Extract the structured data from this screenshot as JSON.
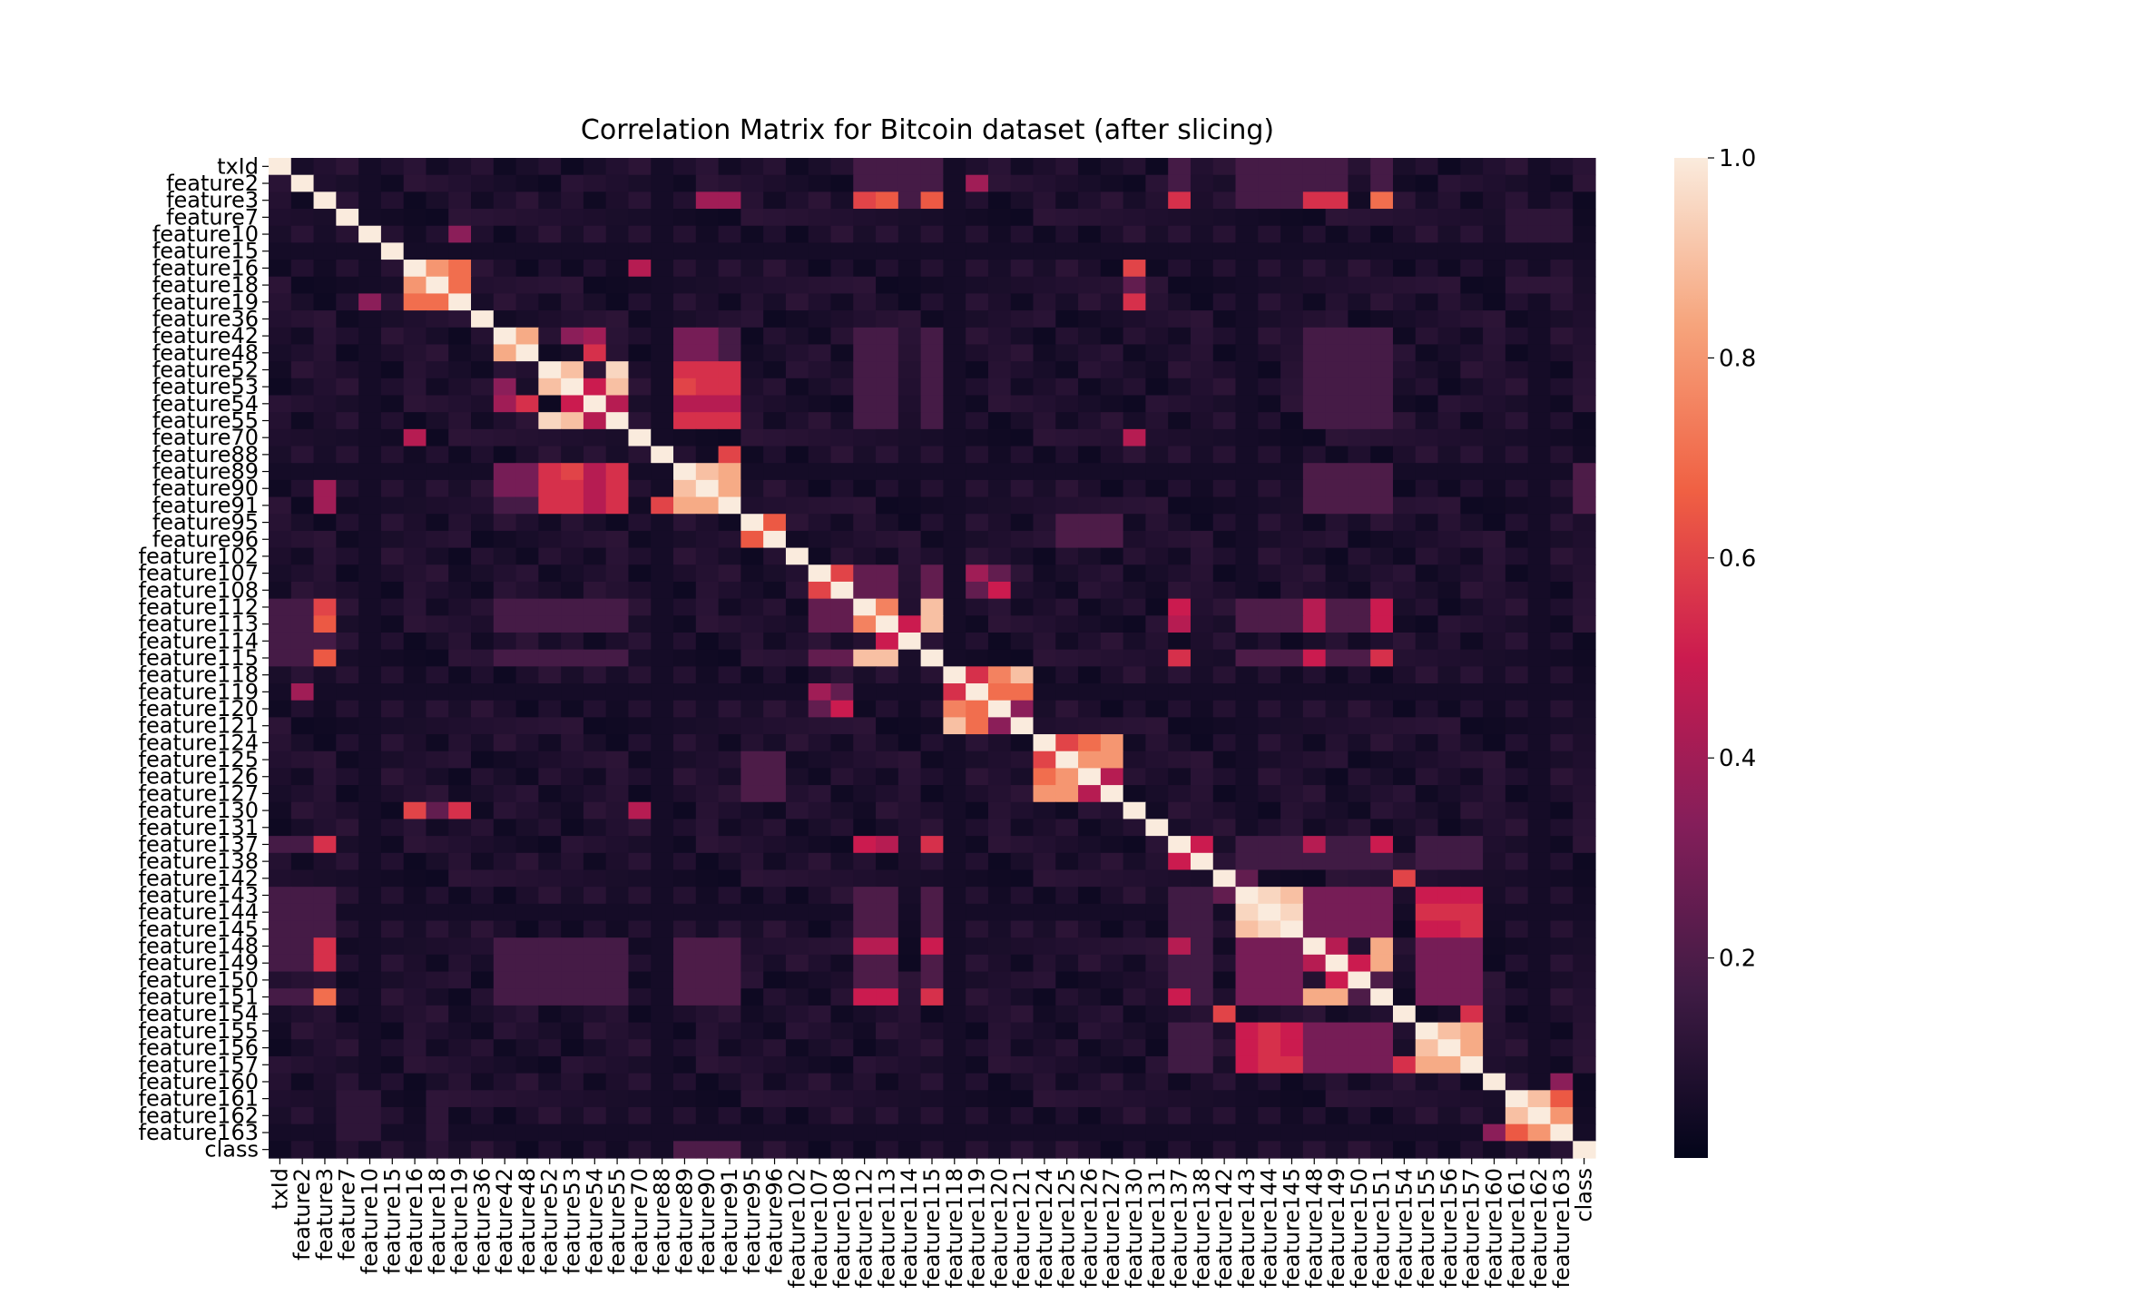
{
  "chart_data": {
    "type": "heatmap",
    "title": "Correlation Matrix for Bitcoin dataset (after slicing)",
    "labels": [
      "txId",
      "feature2",
      "feature3",
      "feature7",
      "feature10",
      "feature15",
      "feature16",
      "feature18",
      "feature19",
      "feature36",
      "feature42",
      "feature48",
      "feature52",
      "feature53",
      "feature54",
      "feature55",
      "feature70",
      "feature88",
      "feature89",
      "feature90",
      "feature91",
      "feature95",
      "feature96",
      "feature102",
      "feature107",
      "feature108",
      "feature112",
      "feature113",
      "feature114",
      "feature115",
      "feature118",
      "feature119",
      "feature120",
      "feature121",
      "feature124",
      "feature125",
      "feature126",
      "feature127",
      "feature130",
      "feature131",
      "feature137",
      "feature138",
      "feature142",
      "feature143",
      "feature144",
      "feature145",
      "feature148",
      "feature149",
      "feature150",
      "feature151",
      "feature154",
      "feature155",
      "feature156",
      "feature157",
      "feature160",
      "feature161",
      "feature162",
      "feature163",
      "class"
    ],
    "colorbar": {
      "range": [
        0.0,
        1.0
      ],
      "ticks": [
        0.2,
        0.4,
        0.6,
        0.8,
        1.0
      ],
      "tick_labels": [
        "0.2",
        "0.4",
        "0.6",
        "0.8",
        "1.0"
      ],
      "colormap": "rocket",
      "colors": [
        "#03051a",
        "#3f1b44",
        "#841e5a",
        "#cb1b4f",
        "#f06043",
        "#f6a47c",
        "#faebdd"
      ]
    },
    "background_value": 0.03,
    "high_correlations": [
      [
        "feature16",
        "feature18",
        0.8
      ],
      [
        "feature16",
        "feature19",
        0.7
      ],
      [
        "feature18",
        "feature19",
        0.7
      ],
      [
        "feature42",
        "feature48",
        0.85
      ],
      [
        "feature48",
        "feature54",
        0.55
      ],
      [
        "feature42",
        "feature53",
        0.35
      ],
      [
        "feature42",
        "feature54",
        0.4
      ],
      [
        "feature52",
        "feature53",
        0.9
      ],
      [
        "feature52",
        "feature55",
        0.95
      ],
      [
        "feature53",
        "feature55",
        0.9
      ],
      [
        "feature53",
        "feature54",
        0.5
      ],
      [
        "feature54",
        "feature55",
        0.45
      ],
      [
        "feature89",
        "feature90",
        0.9
      ],
      [
        "feature89",
        "feature91",
        0.85
      ],
      [
        "feature90",
        "feature91",
        0.85
      ],
      [
        "feature52",
        "feature89",
        0.55
      ],
      [
        "feature52",
        "feature90",
        0.55
      ],
      [
        "feature52",
        "feature91",
        0.55
      ],
      [
        "feature53",
        "feature89",
        0.6
      ],
      [
        "feature53",
        "feature90",
        0.55
      ],
      [
        "feature53",
        "feature91",
        0.55
      ],
      [
        "feature55",
        "feature89",
        0.55
      ],
      [
        "feature55",
        "feature90",
        0.55
      ],
      [
        "feature55",
        "feature91",
        0.55
      ],
      [
        "feature54",
        "feature89",
        0.45
      ],
      [
        "feature54",
        "feature90",
        0.45
      ],
      [
        "feature54",
        "feature91",
        0.45
      ],
      [
        "feature42",
        "feature89",
        0.3
      ],
      [
        "feature48",
        "feature89",
        0.3
      ],
      [
        "feature42",
        "feature90",
        0.3
      ],
      [
        "feature48",
        "feature90",
        0.3
      ],
      [
        "feature88",
        "feature91",
        0.6
      ],
      [
        "feature70",
        "feature16",
        0.45
      ],
      [
        "feature70",
        "feature130",
        0.45
      ],
      [
        "feature95",
        "feature96",
        0.65
      ],
      [
        "feature107",
        "feature108",
        0.6
      ],
      [
        "feature108",
        "feature120",
        0.5
      ],
      [
        "feature107",
        "feature119",
        0.4
      ],
      [
        "feature112",
        "feature113",
        0.75
      ],
      [
        "feature112",
        "feature115",
        0.9
      ],
      [
        "feature113",
        "feature115",
        0.9
      ],
      [
        "feature113",
        "feature114",
        0.5
      ],
      [
        "feature3",
        "feature112",
        0.6
      ],
      [
        "feature3",
        "feature113",
        0.65
      ],
      [
        "feature3",
        "feature115",
        0.65
      ],
      [
        "feature118",
        "feature119",
        0.55
      ],
      [
        "feature118",
        "feature120",
        0.75
      ],
      [
        "feature118",
        "feature121",
        0.9
      ],
      [
        "feature119",
        "feature120",
        0.7
      ],
      [
        "feature119",
        "feature121",
        0.7
      ],
      [
        "feature120",
        "feature121",
        0.35
      ],
      [
        "feature124",
        "feature125",
        0.6
      ],
      [
        "feature124",
        "feature126",
        0.7
      ],
      [
        "feature124",
        "feature127",
        0.8
      ],
      [
        "feature125",
        "feature126",
        0.8
      ],
      [
        "feature125",
        "feature127",
        0.8
      ],
      [
        "feature126",
        "feature127",
        0.45
      ],
      [
        "feature16",
        "feature130",
        0.6
      ],
      [
        "feature19",
        "feature130",
        0.55
      ],
      [
        "feature18",
        "feature130",
        0.25
      ],
      [
        "feature3",
        "feature137",
        0.55
      ],
      [
        "feature137",
        "feature138",
        0.5
      ],
      [
        "feature112",
        "feature137",
        0.5
      ],
      [
        "feature113",
        "feature137",
        0.45
      ],
      [
        "feature115",
        "feature137",
        0.55
      ],
      [
        "feature143",
        "feature144",
        0.95
      ],
      [
        "feature143",
        "feature145",
        0.9
      ],
      [
        "feature144",
        "feature145",
        0.95
      ],
      [
        "feature148",
        "feature149",
        0.45
      ],
      [
        "feature148",
        "feature151",
        0.85
      ],
      [
        "feature149",
        "feature150",
        0.5
      ],
      [
        "feature150",
        "feature151",
        0.2
      ],
      [
        "feature149",
        "feature151",
        0.85
      ],
      [
        "feature3",
        "feature148",
        0.55
      ],
      [
        "feature3",
        "feature149",
        0.55
      ],
      [
        "feature3",
        "feature151",
        0.7
      ],
      [
        "feature112",
        "feature148",
        0.45
      ],
      [
        "feature113",
        "feature148",
        0.45
      ],
      [
        "feature115",
        "feature148",
        0.5
      ],
      [
        "feature112",
        "feature151",
        0.5
      ],
      [
        "feature113",
        "feature151",
        0.5
      ],
      [
        "feature115",
        "feature151",
        0.55
      ],
      [
        "feature137",
        "feature148",
        0.45
      ],
      [
        "feature137",
        "feature151",
        0.5
      ],
      [
        "feature143",
        "feature155",
        0.5
      ],
      [
        "feature143",
        "feature156",
        0.5
      ],
      [
        "feature143",
        "feature157",
        0.5
      ],
      [
        "feature144",
        "feature155",
        0.55
      ],
      [
        "feature144",
        "feature156",
        0.55
      ],
      [
        "feature144",
        "feature157",
        0.55
      ],
      [
        "feature145",
        "feature155",
        0.5
      ],
      [
        "feature145",
        "feature156",
        0.5
      ],
      [
        "feature145",
        "feature157",
        0.55
      ],
      [
        "feature155",
        "feature156",
        0.9
      ],
      [
        "feature155",
        "feature157",
        0.85
      ],
      [
        "feature156",
        "feature157",
        0.85
      ],
      [
        "feature142",
        "feature154",
        0.6
      ],
      [
        "feature154",
        "feature157",
        0.55
      ],
      [
        "feature142",
        "feature143",
        0.25
      ],
      [
        "feature161",
        "feature162",
        0.9
      ],
      [
        "feature161",
        "feature163",
        0.65
      ],
      [
        "feature162",
        "feature163",
        0.8
      ],
      [
        "feature160",
        "feature163",
        0.35
      ],
      [
        "feature2",
        "feature119",
        0.4
      ],
      [
        "feature10",
        "feature19",
        0.35
      ],
      [
        "feature3",
        "feature90",
        0.4
      ],
      [
        "feature3",
        "feature91",
        0.4
      ]
    ],
    "group_backgrounds": [
      [
        [
          "feature3",
          "txId",
          "feature2"
        ],
        [
          "feature112",
          "feature113",
          "feature114",
          "feature115",
          "feature137",
          "feature143",
          "feature144",
          "feature145",
          "feature148",
          "feature149",
          "feature151"
        ],
        0.18
      ],
      [
        [
          "feature42",
          "feature48",
          "feature52",
          "feature53",
          "feature54",
          "feature55"
        ],
        [
          "feature89",
          "feature90",
          "feature91",
          "feature112",
          "feature113",
          "feature115",
          "feature148",
          "feature149",
          "feature150",
          "feature151"
        ],
        0.18
      ],
      [
        [
          "feature112",
          "feature113",
          "feature115"
        ],
        [
          "feature143",
          "feature144",
          "feature145",
          "feature148",
          "feature149",
          "feature150",
          "feature151"
        ],
        0.2
      ],
      [
        [
          "feature137",
          "feature138"
        ],
        [
          "feature143",
          "feature144",
          "feature145",
          "feature148",
          "feature149",
          "feature150",
          "feature151",
          "feature155",
          "feature156",
          "feature157"
        ],
        0.17
      ],
      [
        [
          "feature148",
          "feature149",
          "feature150",
          "feature151"
        ],
        [
          "feature155",
          "feature156",
          "feature157",
          "feature143",
          "feature144",
          "feature145"
        ],
        0.3
      ],
      [
        [
          "feature89",
          "feature90",
          "feature91"
        ],
        [
          "feature148",
          "feature149",
          "feature150",
          "feature151",
          "class"
        ],
        0.2
      ],
      [
        [
          "feature95",
          "feature96",
          "feature125",
          "feature126"
        ],
        [
          "feature125",
          "feature126",
          "feature127",
          "feature95",
          "feature96"
        ],
        0.2
      ],
      [
        [
          "feature107",
          "feature108"
        ],
        [
          "feature112",
          "feature113",
          "feature115",
          "feature119",
          "feature120"
        ],
        0.25
      ],
      [
        [
          "feature161",
          "feature162",
          "feature163"
        ],
        [
          "feature7",
          "feature10",
          "feature18"
        ],
        0.12
      ]
    ]
  }
}
